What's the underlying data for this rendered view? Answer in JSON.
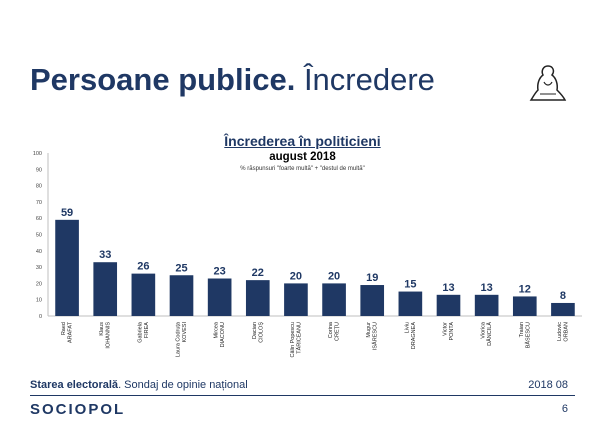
{
  "slide": {
    "title_bold": "Persoane publice.",
    "title_rest": " Încredere",
    "footer_bold": "Starea electorală",
    "footer_rest": ". Sondaj de opinie național",
    "footer_date": "2018 08",
    "brand": "SOCIOPOL",
    "page": "6"
  },
  "chart_data": {
    "type": "bar",
    "title": "Încrederea în politicieni",
    "subtitle": "august 2018",
    "note": "% răspunsuri \"foarte multă\" + \"destul de multă\"",
    "categories": [
      [
        "Raed",
        "ARAFAT"
      ],
      [
        "Klaus",
        "IOHANNIS"
      ],
      [
        "Gabriela",
        "FIREA"
      ],
      [
        "Laura Codruța",
        "KOVESI"
      ],
      [
        "Mircea",
        "DIACONU"
      ],
      [
        "Dacian",
        "CIOLOȘ"
      ],
      [
        "Călin Popescu",
        "TĂRICEANU"
      ],
      [
        "Corina",
        "CREȚU"
      ],
      [
        "Mugur",
        "ISĂRESCU"
      ],
      [
        "Liviu",
        "DRAGNEA"
      ],
      [
        "Victor",
        "PONTA"
      ],
      [
        "Viorica",
        "DĂNCILĂ"
      ],
      [
        "Traian",
        "BĂSESCU"
      ],
      [
        "Ludovic",
        "ORBAN"
      ]
    ],
    "values": [
      59,
      33,
      26,
      25,
      23,
      22,
      20,
      20,
      19,
      15,
      13,
      13,
      12,
      8
    ],
    "ylim": [
      0,
      100
    ],
    "yticks": [
      0,
      10,
      20,
      30,
      40,
      50,
      60,
      70,
      80,
      90,
      100
    ],
    "grid": false,
    "bar_color": "#1f3864"
  }
}
